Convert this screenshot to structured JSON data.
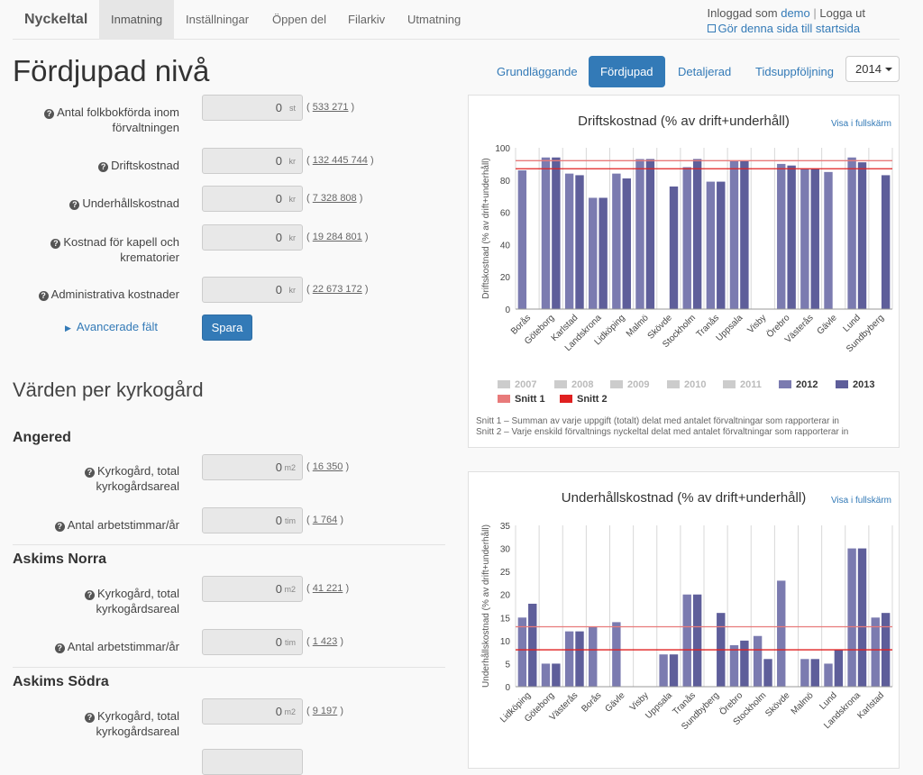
{
  "nav": {
    "brand": "Nyckeltal",
    "tabs": [
      "Inmatning",
      "Inställningar",
      "Öppen del",
      "Filarkiv",
      "Utmatning"
    ],
    "active_tab": "Inmatning",
    "user_prefix": "Inloggad som",
    "username": "demo",
    "separator": "|",
    "logout": "Logga ut",
    "startpage": "Gör denna sida till startsida"
  },
  "page": {
    "title": "Fördjupad nivå"
  },
  "levels": {
    "tabs": [
      "Grundläggande",
      "Fördjupad",
      "Detaljerad",
      "Tidsuppföljning"
    ],
    "active": "Fördjupad",
    "year": "2014"
  },
  "form": {
    "fields": [
      {
        "label": "Antal folkbokförda inom förvaltningen",
        "value": "0",
        "unit": "st",
        "ref": "533 271"
      },
      {
        "label": "Driftskostnad",
        "value": "0",
        "unit": "kr",
        "ref": "132 445 744"
      },
      {
        "label": "Underhållskostnad",
        "value": "0",
        "unit": "kr",
        "ref": "7 328 808"
      },
      {
        "label": "Kostnad för kapell och krematorier",
        "value": "0",
        "unit": "kr",
        "ref": "19 284 801"
      },
      {
        "label": "Administrativa kostnader",
        "value": "0",
        "unit": "kr",
        "ref": "22 673 172"
      }
    ],
    "advanced_link": "Avancerade fält",
    "save_label": "Spara"
  },
  "per_cemetery": {
    "title": "Värden per kyrkogård",
    "field_area_label": "Kyrkogård, total kyrkogårdsareal",
    "field_hours_label": "Antal arbetstimmar/år",
    "items": [
      {
        "name": "Angered",
        "area_value": "0",
        "area_unit": "m2",
        "area_ref": "16 350",
        "hours_value": "0",
        "hours_unit": "tim",
        "hours_ref": "1 764"
      },
      {
        "name": "Askims Norra",
        "area_value": "0",
        "area_unit": "m2",
        "area_ref": "41 221",
        "hours_value": "0",
        "hours_unit": "tim",
        "hours_ref": "1 423"
      },
      {
        "name": "Askims Södra",
        "area_value": "0",
        "area_unit": "m2",
        "area_ref": "9 197"
      }
    ]
  },
  "fullscreen_label": "Visa i fullskärm",
  "chart_notes": [
    "Snitt 1 – Summan av varje uppgift (totalt) delat med antalet förvaltningar som rapporterar in",
    "Snitt 2 – Varje enskild förvaltnings nyckeltal delat med antalet förvaltningar som rapporterar in"
  ],
  "legend": {
    "years": [
      {
        "label": "2007",
        "color": "#cccccc",
        "active": false
      },
      {
        "label": "2008",
        "color": "#cccccc",
        "active": false
      },
      {
        "label": "2009",
        "color": "#cccccc",
        "active": false
      },
      {
        "label": "2010",
        "color": "#cccccc",
        "active": false
      },
      {
        "label": "2011",
        "color": "#cccccc",
        "active": false
      },
      {
        "label": "2012",
        "color": "#7b7bb0",
        "active": true
      },
      {
        "label": "2013",
        "color": "#5e5e9a",
        "active": true
      }
    ],
    "averages": [
      {
        "label": "Snitt 1",
        "color": "#e87a7a"
      },
      {
        "label": "Snitt 2",
        "color": "#e02020"
      }
    ]
  },
  "chart_data": [
    {
      "type": "bar",
      "title": "Driftskostnad (% av drift+underhåll)",
      "ylabel": "Driftskostnad (% av drift+underhåll)",
      "ylim": [
        0,
        100
      ],
      "yticks": [
        0,
        20,
        40,
        60,
        80,
        100
      ],
      "categories": [
        "Borås",
        "Göteborg",
        "Karlstad",
        "Landskrona",
        "Lidköping",
        "Malmö",
        "Skövde",
        "Stockholm",
        "Tranås",
        "Uppsala",
        "Visby",
        "Örebro",
        "Västerås",
        "Gävle",
        "Lund",
        "Sundbyberg"
      ],
      "series": [
        {
          "name": "2012",
          "values": [
            86,
            94,
            84,
            69,
            84,
            93,
            null,
            88,
            79,
            92,
            null,
            90,
            87,
            85,
            94,
            null
          ]
        },
        {
          "name": "2013",
          "values": [
            null,
            94,
            83,
            69,
            81,
            93,
            76,
            93,
            79,
            92,
            null,
            89,
            87,
            null,
            91,
            83
          ]
        }
      ],
      "reference_lines": [
        {
          "name": "Snitt 1",
          "value": 92
        },
        {
          "name": "Snitt 2",
          "value": 87
        }
      ],
      "grid": "vertical"
    },
    {
      "type": "bar",
      "title": "Underhållskostnad (% av drift+underhåll)",
      "ylabel": "Underhållskostnad (% av drift+underhåll)",
      "ylim": [
        0,
        35
      ],
      "yticks": [
        0,
        5,
        10,
        15,
        20,
        25,
        30,
        35
      ],
      "categories": [
        "Lidköping",
        "Göteborg",
        "Västerås",
        "Borås",
        "Gävle",
        "Visby",
        "Uppsala",
        "Tranås",
        "Sundbyberg",
        "Örebro",
        "Stockholm",
        "Skövde",
        "Malmö",
        "Lund",
        "Landskrona",
        "Karlstad"
      ],
      "series": [
        {
          "name": "2012",
          "values": [
            15,
            5,
            12,
            13,
            14,
            null,
            7,
            20,
            null,
            9,
            11,
            23,
            6,
            5,
            30,
            15
          ]
        },
        {
          "name": "2013",
          "values": [
            18,
            5,
            12,
            null,
            null,
            null,
            7,
            20,
            16,
            10,
            6,
            null,
            6,
            8,
            30,
            16
          ]
        }
      ],
      "reference_lines": [
        {
          "name": "Snitt 1",
          "value": 13
        },
        {
          "name": "Snitt 2",
          "value": 8
        }
      ],
      "grid": "vertical"
    }
  ]
}
